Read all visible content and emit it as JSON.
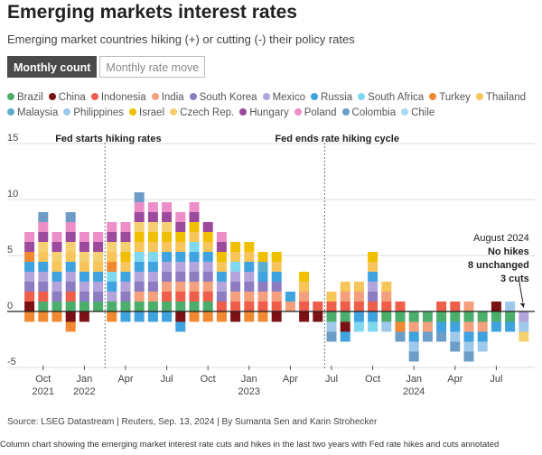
{
  "header": {
    "title": "Emerging markets interest rates",
    "subtitle": "Emerging market countries hiking (+) or cutting (-) their policy rates"
  },
  "tabs": [
    {
      "label": "Monthly count",
      "active": true
    },
    {
      "label": "Monthly rate move",
      "active": false
    }
  ],
  "footer": {
    "source": "Source: LSEG Datastream | Reuters, Sep. 13, 2024 | By Sumanta Sen and Karin Strohecker",
    "caption": "Column chart showing the emerging market interest rate cuts and hikes in the last two years with Fed rate hikes and cuts annotated"
  },
  "chart_data": {
    "type": "bar",
    "stacked": true,
    "ylim": [
      -5,
      15
    ],
    "yticks": [
      -5,
      0,
      5,
      10,
      15
    ],
    "countries": [
      {
        "name": "Brazil",
        "color": "#4cae6b"
      },
      {
        "name": "China",
        "color": "#7b1113"
      },
      {
        "name": "Indonesia",
        "color": "#ee5e4b"
      },
      {
        "name": "India",
        "color": "#f4a07c"
      },
      {
        "name": "South Korea",
        "color": "#8e7cc3"
      },
      {
        "name": "Mexico",
        "color": "#b3a5dc"
      },
      {
        "name": "Russia",
        "color": "#3fa3e0"
      },
      {
        "name": "South Africa",
        "color": "#80d8ef"
      },
      {
        "name": "Turkey",
        "color": "#f0892f"
      },
      {
        "name": "Thailand",
        "color": "#f7c55a"
      },
      {
        "name": "Malaysia",
        "color": "#5dadcf"
      },
      {
        "name": "Philippines",
        "color": "#9fc9ea"
      },
      {
        "name": "Israel",
        "color": "#f0c000"
      },
      {
        "name": "Czech Rep.",
        "color": "#f5d070"
      },
      {
        "name": "Hungary",
        "color": "#9c4a9e"
      },
      {
        "name": "Poland",
        "color": "#ec8fc8"
      },
      {
        "name": "Colombia",
        "color": "#6c9dc6"
      },
      {
        "name": "Chile",
        "color": "#a9d8f0"
      }
    ],
    "x_ticks": [
      {
        "index": 1,
        "labels": [
          "Oct",
          "2021"
        ]
      },
      {
        "index": 4,
        "labels": [
          "Jan",
          "2022"
        ]
      },
      {
        "index": 7,
        "labels": [
          "Apr"
        ]
      },
      {
        "index": 10,
        "labels": [
          "Jul"
        ]
      },
      {
        "index": 13,
        "labels": [
          "Oct"
        ]
      },
      {
        "index": 16,
        "labels": [
          "Jan",
          "2023"
        ]
      },
      {
        "index": 19,
        "labels": [
          "Apr"
        ]
      },
      {
        "index": 22,
        "labels": [
          "Jul"
        ]
      },
      {
        "index": 25,
        "labels": [
          "Oct"
        ]
      },
      {
        "index": 28,
        "labels": [
          "Jan",
          "2024"
        ]
      },
      {
        "index": 31,
        "labels": [
          "Apr"
        ]
      },
      {
        "index": 34,
        "labels": [
          "Jul"
        ]
      }
    ],
    "months": [
      {
        "hikes": [
          1,
          2,
          4,
          5,
          6,
          8,
          14,
          15
        ],
        "cuts": [
          8
        ]
      },
      {
        "hikes": [
          0,
          2,
          4,
          5,
          6,
          9,
          13,
          14,
          15,
          16
        ],
        "cuts": [
          8
        ]
      },
      {
        "hikes": [
          0,
          4,
          5,
          6,
          9,
          13,
          14,
          15
        ],
        "cuts": [
          8
        ]
      },
      {
        "hikes": [
          0,
          2,
          4,
          5,
          6,
          9,
          13,
          14,
          15,
          16
        ],
        "cuts": [
          1,
          8
        ]
      },
      {
        "hikes": [
          0,
          4,
          5,
          6,
          9,
          13,
          14,
          15
        ],
        "cuts": [
          1
        ]
      },
      {
        "hikes": [
          0,
          4,
          5,
          6,
          9,
          13,
          14,
          15
        ],
        "cuts": []
      },
      {
        "hikes": [
          0,
          5,
          6,
          7,
          8,
          9,
          13,
          14,
          15
        ],
        "cuts": [
          8
        ]
      },
      {
        "hikes": [
          0,
          4,
          5,
          6,
          9,
          12,
          13,
          14,
          15
        ],
        "cuts": [
          6
        ]
      },
      {
        "hikes": [
          0,
          3,
          4,
          5,
          6,
          7,
          9,
          12,
          13,
          14,
          15,
          16
        ],
        "cuts": [
          6
        ]
      },
      {
        "hikes": [
          0,
          3,
          4,
          5,
          6,
          7,
          9,
          12,
          13,
          14,
          15
        ],
        "cuts": [
          6
        ]
      },
      {
        "hikes": [
          0,
          2,
          3,
          4,
          5,
          6,
          9,
          12,
          13,
          14,
          15
        ],
        "cuts": [
          6
        ]
      },
      {
        "hikes": [
          0,
          2,
          3,
          4,
          5,
          6,
          9,
          12,
          14,
          15
        ],
        "cuts": [
          1,
          6
        ]
      },
      {
        "hikes": [
          0,
          2,
          3,
          4,
          5,
          6,
          7,
          9,
          12,
          14,
          15
        ],
        "cuts": [
          8
        ]
      },
      {
        "hikes": [
          0,
          2,
          3,
          4,
          5,
          6,
          9,
          12,
          14
        ],
        "cuts": [
          8
        ]
      },
      {
        "hikes": [
          2,
          4,
          5,
          6,
          9,
          12,
          14,
          15
        ],
        "cuts": [
          8
        ]
      },
      {
        "hikes": [
          2,
          3,
          4,
          5,
          7,
          9,
          12
        ],
        "cuts": [
          1
        ]
      },
      {
        "hikes": [
          2,
          3,
          4,
          5,
          6,
          9,
          12
        ],
        "cuts": [
          8
        ]
      },
      {
        "hikes": [
          2,
          3,
          4,
          6,
          10,
          12
        ],
        "cuts": [
          8
        ]
      },
      {
        "hikes": [
          2,
          3,
          4,
          6,
          9,
          12
        ],
        "cuts": [
          1
        ]
      },
      {
        "hikes": [
          3,
          6
        ],
        "cuts": []
      },
      {
        "hikes": [
          2,
          3,
          9,
          12
        ],
        "cuts": [
          1
        ]
      },
      {
        "hikes": [
          2
        ],
        "cuts": [
          1
        ]
      },
      {
        "hikes": [
          2,
          9
        ],
        "cuts": [
          0,
          11,
          16
        ]
      },
      {
        "hikes": [
          2,
          3,
          9
        ],
        "cuts": [
          0,
          1,
          6
        ]
      },
      {
        "hikes": [
          2,
          3,
          9
        ],
        "cuts": [
          6,
          7
        ]
      },
      {
        "hikes": [
          2,
          4,
          5,
          6,
          9,
          12
        ],
        "cuts": [
          6,
          7
        ]
      },
      {
        "hikes": [
          2,
          3,
          9
        ],
        "cuts": [
          0,
          11
        ]
      },
      {
        "hikes": [
          2
        ],
        "cuts": [
          0,
          8,
          16
        ]
      },
      {
        "hikes": [],
        "cuts": [
          0,
          3,
          6,
          11,
          16
        ]
      },
      {
        "hikes": [],
        "cuts": [
          0,
          3,
          16
        ]
      },
      {
        "hikes": [
          2
        ],
        "cuts": [
          0,
          6,
          16
        ]
      },
      {
        "hikes": [
          2
        ],
        "cuts": [
          0,
          6,
          11,
          16
        ]
      },
      {
        "hikes": [
          3
        ],
        "cuts": [
          0,
          3,
          6,
          11,
          16
        ]
      },
      {
        "hikes": [],
        "cuts": [
          0,
          3,
          6,
          11
        ]
      },
      {
        "hikes": [
          1
        ],
        "cuts": [
          0,
          6
        ]
      },
      {
        "hikes": [
          11
        ],
        "cuts": [
          0,
          6
        ]
      },
      {
        "hikes": [],
        "cuts": [
          5,
          11,
          13
        ]
      }
    ],
    "annotations": [
      {
        "index": 6,
        "label": "Fed starts hiking rates"
      },
      {
        "index": 22,
        "label": "Fed ends rate hiking cycle"
      }
    ],
    "callout": {
      "index": 36,
      "lines": [
        "August 2024",
        "No hikes",
        "8 unchanged",
        "3 cuts"
      ]
    }
  }
}
